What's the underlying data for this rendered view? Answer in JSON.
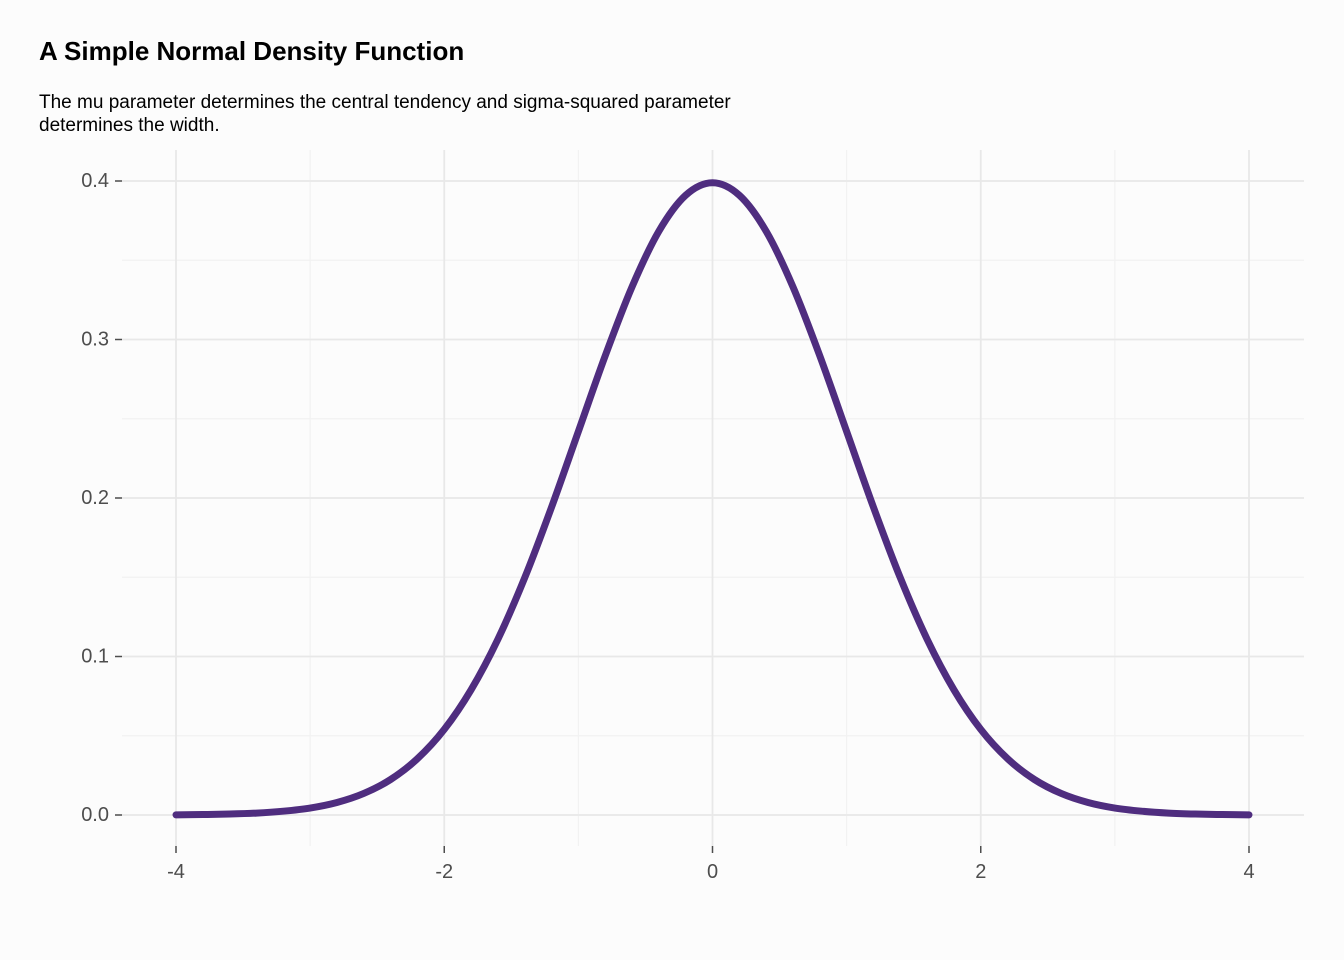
{
  "chart_data": {
    "type": "line",
    "title": "A Simple Normal Density Function",
    "subtitle": "The mu parameter determines the central tendency and sigma-squared parameter determines the width.",
    "xlabel": "",
    "ylabel": "",
    "xlim": [
      -4,
      4
    ],
    "ylim": [
      0,
      0.4
    ],
    "x_ticks": [
      -4,
      -2,
      0,
      2,
      4
    ],
    "x_tick_labels": [
      "-4",
      "-2",
      "0",
      "2",
      "4"
    ],
    "y_ticks": [
      0.0,
      0.1,
      0.2,
      0.3,
      0.4
    ],
    "y_tick_labels": [
      "0.0",
      "0.1",
      "0.2",
      "0.3",
      "0.4"
    ],
    "grid": true,
    "legend": "none",
    "series": [
      {
        "color": "#4f2d7f",
        "x": [
          -4.0,
          -3.8,
          -3.6,
          -3.4,
          -3.2,
          -3.0,
          -2.8,
          -2.6,
          -2.4,
          -2.2,
          -2.0,
          -1.8,
          -1.6,
          -1.4,
          -1.2,
          -1.0,
          -0.8,
          -0.6,
          -0.4,
          -0.2,
          0.0,
          0.2,
          0.4,
          0.6,
          0.8,
          1.0,
          1.2,
          1.4,
          1.6,
          1.8,
          2.0,
          2.2,
          2.4,
          2.6,
          2.8,
          3.0,
          3.2,
          3.4,
          3.6,
          3.8,
          4.0
        ],
        "y": [
          0.0001,
          0.0003,
          0.0006,
          0.0012,
          0.0024,
          0.0044,
          0.0079,
          0.0136,
          0.0224,
          0.0355,
          0.054,
          0.079,
          0.1109,
          0.1497,
          0.1942,
          0.242,
          0.2897,
          0.3332,
          0.3683,
          0.391,
          0.3989,
          0.391,
          0.3683,
          0.3332,
          0.2897,
          0.242,
          0.1942,
          0.1497,
          0.1109,
          0.079,
          0.054,
          0.0355,
          0.0224,
          0.0136,
          0.0079,
          0.0044,
          0.0024,
          0.0012,
          0.0006,
          0.0003,
          0.0001
        ]
      }
    ]
  },
  "colors": {
    "background": "#fcfcfc",
    "grid_major": "#e8e8e8",
    "grid_minor": "#f2f2f2",
    "axis_text": "#4d4d4d",
    "line": "#4f2d7f"
  }
}
